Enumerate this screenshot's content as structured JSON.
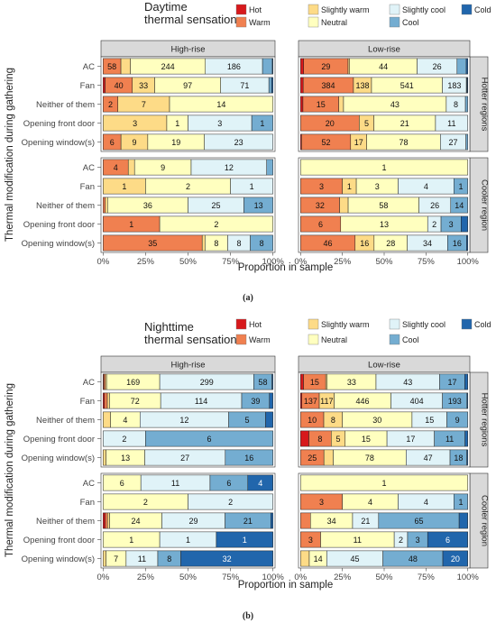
{
  "legend_colors": {
    "Hot": "#d7191c",
    "Warm": "#f08050",
    "Slightly warm": "#fddb87",
    "Neutral": "#ffffbf",
    "Slightly cool": "#e0f3f8",
    "Cool": "#74add1",
    "Cold": "#2166ac"
  },
  "chart_data": [
    {
      "type": "bar",
      "orientation": "horizontal",
      "stacked": "proportion",
      "title": "Daytime\nthermal sensation",
      "sublabel": "(a)",
      "xlabel": "Proportion in sample",
      "ylabel": "Thermal modification during gathering",
      "xticks": [
        "0%",
        "25%",
        "50%",
        "75%",
        "100%"
      ],
      "xlim": [
        0,
        1
      ],
      "legend_placement": "top",
      "legend_items": [
        "Hot",
        "Slightly warm",
        "Slightly cool",
        "Cold",
        "Warm",
        "Neutral",
        "Cool"
      ],
      "category_order": [
        "Hot",
        "Warm",
        "Slightly warm",
        "Neutral",
        "Slightly cool",
        "Cool",
        "Cold"
      ],
      "columns": [
        "High-rise",
        "Low-rise"
      ],
      "rows": [
        "Hotter regions",
        "Cooler region"
      ],
      "categories": [
        "AC",
        "Fan",
        "Neither of them",
        "Opening front door",
        "Opening window(s)"
      ],
      "panels": {
        "High-rise|Hotter regions": [
          [
            0,
            58,
            31,
            244,
            186,
            32,
            2
          ],
          [
            3,
            40,
            33,
            97,
            71,
            4,
            2
          ],
          [
            0,
            2,
            7,
            14,
            0,
            0,
            0
          ],
          [
            0,
            0,
            3,
            1,
            3,
            1,
            0
          ],
          [
            0,
            6,
            9,
            19,
            23,
            0,
            0
          ]
        ],
        "Low-rise|Hotter regions": [
          [
            2,
            29,
            1,
            44,
            26,
            6,
            1
          ],
          [
            20,
            384,
            138,
            541,
            183,
            6,
            5
          ],
          [
            1,
            15,
            2,
            43,
            8,
            1,
            0
          ],
          [
            0,
            20,
            5,
            21,
            11,
            0,
            0
          ],
          [
            1,
            52,
            17,
            78,
            27,
            2,
            0
          ]
        ],
        "High-rise|Cooler region": [
          [
            0,
            4,
            1,
            9,
            12,
            1,
            0
          ],
          [
            0,
            0,
            1,
            2,
            1,
            0,
            0
          ],
          [
            0,
            1,
            1,
            36,
            25,
            13,
            0
          ],
          [
            0,
            1,
            0,
            2,
            0,
            0,
            0
          ],
          [
            0,
            35,
            1,
            8,
            8,
            8,
            0
          ]
        ],
        "Low-rise|Cooler region": [
          [
            0,
            0,
            0,
            1,
            0,
            0,
            0
          ],
          [
            0,
            3,
            1,
            3,
            4,
            1,
            0
          ],
          [
            0,
            32,
            7,
            58,
            26,
            14,
            0
          ],
          [
            0,
            6,
            0,
            13,
            2,
            3,
            1
          ],
          [
            0,
            46,
            16,
            28,
            34,
            16,
            1
          ]
        ]
      }
    },
    {
      "type": "bar",
      "orientation": "horizontal",
      "stacked": "proportion",
      "title": "Nighttime\nthermal sensation",
      "sublabel": "(b)",
      "xlabel": "Proportion in sample",
      "ylabel": "Thermal modification during gathering",
      "xticks": [
        "0%",
        "25%",
        "50%",
        "75%",
        "100%"
      ],
      "xlim": [
        0,
        1
      ],
      "legend_placement": "top",
      "legend_items": [
        "Hot",
        "Slightly warm",
        "Slightly cool",
        "Cold",
        "Warm",
        "Neutral",
        "Cool"
      ],
      "category_order": [
        "Hot",
        "Warm",
        "Slightly warm",
        "Neutral",
        "Slightly cool",
        "Cool",
        "Cold"
      ],
      "columns": [
        "High-rise",
        "Low-rise"
      ],
      "rows": [
        "Hotter regions",
        "Cooler region"
      ],
      "categories": [
        "AC",
        "Fan",
        "Neither of them",
        "Opening front door",
        "Opening window(s)"
      ],
      "panels": {
        "High-rise|Hotter regions": [
          [
            2,
            5,
            4,
            169,
            299,
            58,
            3
          ],
          [
            2,
            4,
            3,
            72,
            114,
            39,
            5
          ],
          [
            0,
            0,
            1,
            4,
            12,
            5,
            1
          ],
          [
            0,
            0,
            0,
            0,
            2,
            6,
            0
          ],
          [
            0,
            0,
            1,
            13,
            27,
            16,
            0
          ]
        ],
        "Low-rise|Hotter regions": [
          [
            2,
            15,
            1,
            33,
            43,
            17,
            2
          ],
          [
            10,
            137,
            117,
            446,
            404,
            193,
            6
          ],
          [
            0,
            10,
            8,
            30,
            15,
            9,
            0
          ],
          [
            3,
            8,
            5,
            15,
            17,
            11,
            1
          ],
          [
            0,
            25,
            10,
            78,
            47,
            18,
            1
          ]
        ],
        "High-rise|Cooler region": [
          [
            0,
            0,
            0,
            6,
            11,
            6,
            4
          ],
          [
            0,
            0,
            0,
            2,
            2,
            0,
            0
          ],
          [
            1,
            1,
            1,
            24,
            29,
            21,
            1
          ],
          [
            0,
            0,
            0,
            1,
            1,
            0,
            1
          ],
          [
            0,
            0,
            1,
            7,
            11,
            8,
            32
          ]
        ],
        "Low-rise|Cooler region": [
          [
            0,
            0,
            0,
            1,
            0,
            0,
            0
          ],
          [
            0,
            3,
            0,
            4,
            4,
            1,
            0
          ],
          [
            0,
            8,
            0,
            34,
            21,
            65,
            7
          ],
          [
            0,
            3,
            0,
            11,
            2,
            3,
            6
          ],
          [
            0,
            0,
            7,
            14,
            45,
            48,
            20
          ]
        ]
      }
    }
  ]
}
